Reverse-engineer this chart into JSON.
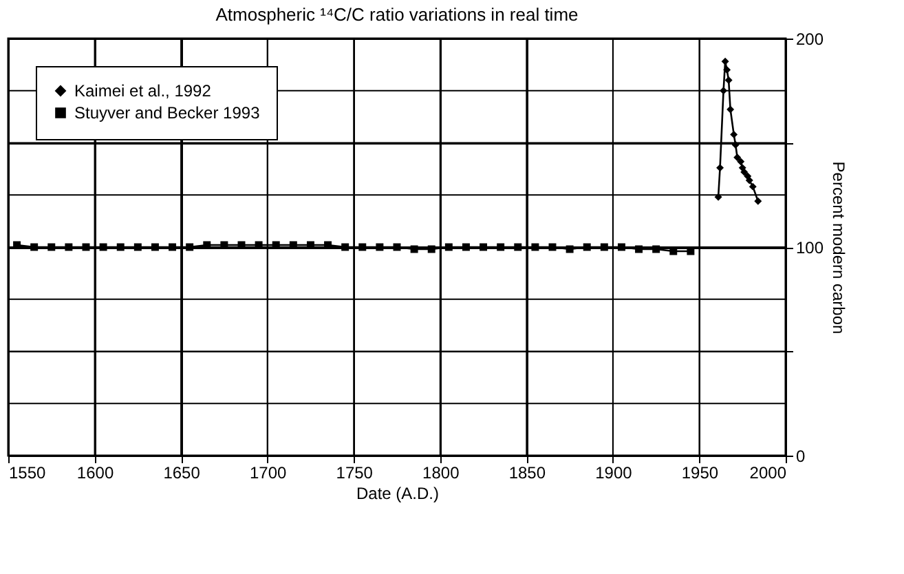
{
  "chart_data": {
    "type": "line",
    "title": "Atmospheric ¹⁴C/C ratio variations in real time",
    "xlabel": "Date (A.D.)",
    "ylabel": "Percent modern carbon",
    "xlim": [
      1550,
      2000
    ],
    "xticks": [
      1550,
      1600,
      1650,
      1700,
      1750,
      1800,
      1850,
      1900,
      1950,
      2000
    ],
    "ylim": [
      0,
      200
    ],
    "yticks": [
      0,
      {
        "value": 25,
        "label": null
      },
      {
        "value": 50,
        "label": null
      },
      {
        "value": 75,
        "label": null
      },
      100,
      {
        "value": 125,
        "label": null
      },
      {
        "value": 150,
        "label": null
      },
      {
        "value": 175,
        "label": null
      },
      200
    ],
    "grid": true,
    "legend": "top left",
    "line_style": "solid",
    "series": [
      {
        "name": "Kaimei et al., 1992",
        "color": "#000000",
        "marker": "diamond",
        "x": [
          1961,
          1962,
          1964,
          1965,
          1966,
          1967,
          1968,
          1970,
          1971,
          1972,
          1974,
          1975,
          1976,
          1978,
          1979,
          1981,
          1984
        ],
        "values": [
          124,
          138,
          175,
          189,
          185,
          180,
          166,
          154,
          149,
          143,
          141,
          138,
          136,
          134,
          132,
          129,
          122
        ]
      },
      {
        "name": "Stuyver and Becker 1993",
        "color": "#000000",
        "marker": "square",
        "x": [
          1555,
          1565,
          1575,
          1585,
          1595,
          1605,
          1615,
          1625,
          1635,
          1645,
          1655,
          1665,
          1675,
          1685,
          1695,
          1705,
          1715,
          1725,
          1735,
          1745,
          1755,
          1765,
          1775,
          1785,
          1795,
          1805,
          1815,
          1825,
          1835,
          1845,
          1855,
          1865,
          1875,
          1885,
          1895,
          1905,
          1915,
          1925,
          1935,
          1945
        ],
        "values": [
          101,
          100,
          100,
          100,
          100,
          100,
          100,
          100,
          100,
          100,
          100,
          101,
          101,
          101,
          101,
          101,
          101,
          101,
          101,
          100,
          100,
          100,
          100,
          99,
          99,
          100,
          100,
          100,
          100,
          100,
          100,
          100,
          99,
          100,
          100,
          100,
          99,
          99,
          98,
          98
        ]
      }
    ]
  }
}
